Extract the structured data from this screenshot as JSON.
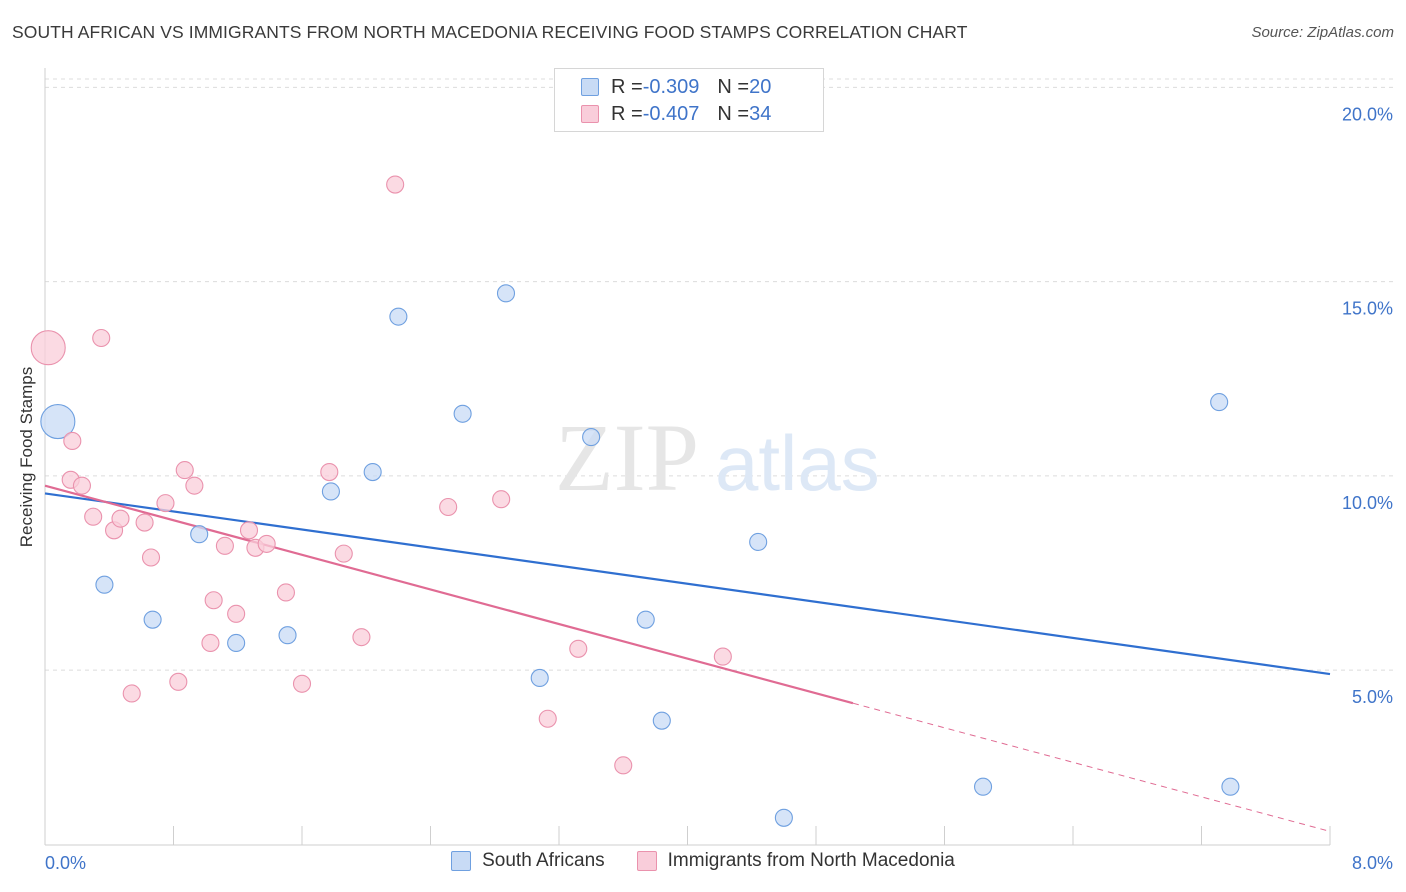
{
  "title": "SOUTH AFRICAN VS IMMIGRANTS FROM NORTH MACEDONIA RECEIVING FOOD STAMPS CORRELATION CHART",
  "source": "Source: ZipAtlas.com",
  "watermark": {
    "zip": "ZIP",
    "atlas": "atlas"
  },
  "legend_top": [
    {
      "r_label": "R = ",
      "r_value": "-0.309",
      "n_label": "N = ",
      "n_value": "20"
    },
    {
      "r_label": "R = ",
      "r_value": "-0.407",
      "n_label": "N = ",
      "n_value": "34"
    }
  ],
  "legend_bottom": [
    "South Africans",
    "Immigrants from North Macedonia"
  ],
  "chart_data": {
    "type": "scatter",
    "title": "SOUTH AFRICAN VS IMMIGRANTS FROM NORTH MACEDONIA RECEIVING FOOD STAMPS CORRELATION CHART",
    "xlabel": "",
    "ylabel": "Receiving Food Stamps",
    "xlim": [
      0,
      8
    ],
    "ylim": [
      0.5,
      20.5
    ],
    "x_tick_labels": [
      "0.0%",
      "8.0%"
    ],
    "y_ticks": [
      5,
      10,
      15,
      20
    ],
    "y_tick_labels": [
      "5.0%",
      "10.0%",
      "15.0%",
      "20.0%"
    ],
    "grid": true,
    "series": [
      {
        "name": "South Africans",
        "color": "#6fa0e0",
        "fill": "#c8dbf5",
        "line_color": "#2f6fd0",
        "trend": {
          "x": [
            0.0,
            8.0
          ],
          "y": [
            9.55,
            4.9
          ]
        },
        "points": [
          {
            "x": 0.08,
            "y": 11.4,
            "big": true
          },
          {
            "x": 0.37,
            "y": 7.2
          },
          {
            "x": 0.67,
            "y": 6.3
          },
          {
            "x": 0.96,
            "y": 8.5
          },
          {
            "x": 1.19,
            "y": 5.7
          },
          {
            "x": 1.51,
            "y": 5.9
          },
          {
            "x": 1.78,
            "y": 9.6
          },
          {
            "x": 2.04,
            "y": 10.1
          },
          {
            "x": 2.2,
            "y": 14.1
          },
          {
            "x": 2.6,
            "y": 11.6
          },
          {
            "x": 2.87,
            "y": 14.7
          },
          {
            "x": 3.08,
            "y": 4.8
          },
          {
            "x": 3.4,
            "y": 11.0
          },
          {
            "x": 3.74,
            "y": 6.3
          },
          {
            "x": 3.84,
            "y": 3.7
          },
          {
            "x": 4.44,
            "y": 8.3
          },
          {
            "x": 4.6,
            "y": 1.2
          },
          {
            "x": 5.84,
            "y": 2.0
          },
          {
            "x": 7.31,
            "y": 11.9
          },
          {
            "x": 7.38,
            "y": 2.0
          }
        ]
      },
      {
        "name": "Immigrants from North Macedonia",
        "color": "#ea92ad",
        "fill": "#f9cdda",
        "line_color": "#e06b93",
        "trend": {
          "x": [
            0.0,
            5.03
          ],
          "y": [
            9.75,
            4.15
          ]
        },
        "trend_dashed": {
          "x": [
            5.03,
            8.0
          ],
          "y": [
            4.15,
            0.85
          ]
        },
        "points": [
          {
            "x": 0.02,
            "y": 13.3,
            "big": true
          },
          {
            "x": 0.16,
            "y": 9.9
          },
          {
            "x": 0.17,
            "y": 10.9
          },
          {
            "x": 0.23,
            "y": 9.75
          },
          {
            "x": 0.3,
            "y": 8.95
          },
          {
            "x": 0.35,
            "y": 13.55
          },
          {
            "x": 0.43,
            "y": 8.6
          },
          {
            "x": 0.47,
            "y": 8.9
          },
          {
            "x": 0.54,
            "y": 4.4
          },
          {
            "x": 0.62,
            "y": 8.8
          },
          {
            "x": 0.66,
            "y": 7.9
          },
          {
            "x": 0.75,
            "y": 9.3
          },
          {
            "x": 0.83,
            "y": 4.7
          },
          {
            "x": 0.87,
            "y": 10.15
          },
          {
            "x": 0.93,
            "y": 9.75
          },
          {
            "x": 1.03,
            "y": 5.7
          },
          {
            "x": 1.05,
            "y": 6.8
          },
          {
            "x": 1.12,
            "y": 8.2
          },
          {
            "x": 1.19,
            "y": 6.45
          },
          {
            "x": 1.27,
            "y": 8.6
          },
          {
            "x": 1.31,
            "y": 8.15
          },
          {
            "x": 1.38,
            "y": 8.25
          },
          {
            "x": 1.5,
            "y": 7.0
          },
          {
            "x": 1.6,
            "y": 4.65
          },
          {
            "x": 1.77,
            "y": 10.1
          },
          {
            "x": 1.86,
            "y": 8.0
          },
          {
            "x": 1.97,
            "y": 5.85
          },
          {
            "x": 2.18,
            "y": 17.5
          },
          {
            "x": 2.51,
            "y": 9.2
          },
          {
            "x": 2.84,
            "y": 9.4
          },
          {
            "x": 3.13,
            "y": 3.75
          },
          {
            "x": 3.32,
            "y": 5.55
          },
          {
            "x": 3.6,
            "y": 2.55
          },
          {
            "x": 4.22,
            "y": 5.35
          }
        ]
      }
    ]
  }
}
